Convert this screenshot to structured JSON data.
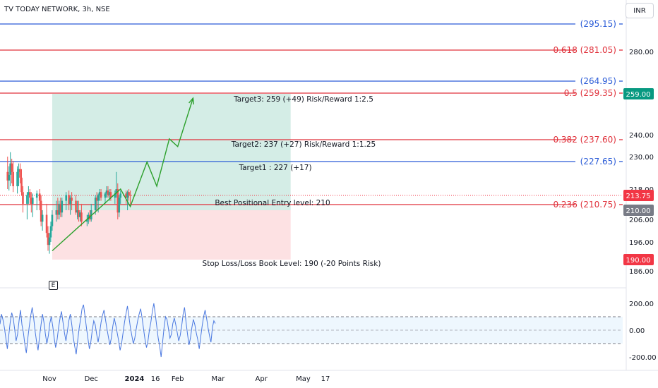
{
  "header": {
    "title": "TV TODAY NETWORK, 3h, NSE",
    "currency": "INR"
  },
  "event_marker": "E",
  "colors": {
    "blue_line": "#2a5bd7",
    "red_line": "#e0303a",
    "green_zone": "rgba(38,166,130,0.20)",
    "red_zone": "rgba(242,54,69,0.15)",
    "candle_up": "#26a69a",
    "candle_down": "#ef5350",
    "projection": "#2ca02c",
    "indicator": "#4a78e0",
    "tag_green": "#089981",
    "tag_red": "#f23645",
    "tag_gray": "#787b86"
  },
  "chart_data": {
    "type": "candlestick",
    "price_axis": {
      "ticks": [
        "280.00",
        "259.00",
        "240.00",
        "230.00",
        "218.00",
        "210.00",
        "206.00",
        "196.00",
        "190.00",
        "186.00"
      ]
    },
    "x_axis": {
      "ticks": [
        "Nov",
        "Dec",
        "2024",
        "16",
        "Feb",
        "Mar",
        "Apr",
        "May",
        "17"
      ]
    },
    "horizontal_levels": [
      {
        "label": "(295.15)",
        "value": 295.15,
        "color": "blue"
      },
      {
        "label": "0.618 (281.05)",
        "value": 281.05,
        "color": "red"
      },
      {
        "label": "(264.95)",
        "value": 264.95,
        "color": "blue"
      },
      {
        "label": "0.5 (259.35)",
        "value": 259.35,
        "color": "red"
      },
      {
        "label": "0.382 (237.60)",
        "value": 237.6,
        "color": "red"
      },
      {
        "label": "(227.65)",
        "value": 227.65,
        "color": "blue"
      },
      {
        "label": "0.236 (210.75)",
        "value": 210.75,
        "color": "red"
      }
    ],
    "price_tags": [
      {
        "label": "259.00",
        "value": 259.0,
        "color": "green"
      },
      {
        "label": "213.75",
        "value": 213.75,
        "color": "red"
      },
      {
        "label": "210.00",
        "value": 210.0,
        "color": "gray"
      },
      {
        "label": "190.00",
        "value": 190.0,
        "color": "red"
      }
    ],
    "position": {
      "entry": 210,
      "target": 259,
      "stop": 190,
      "start": "2023-11-03",
      "end": "2024-04-22"
    },
    "annotations": [
      "Target3: 259 (+49) Risk/Reward 1:2.5",
      "Target2: 237 (+27) Risk/Reward 1:1.25",
      "Target1 : 227 (+17)",
      "Best Positional Entry level: 210",
      "Stop Loss/Loss Book Level: 190 (-20 Points Risk)"
    ],
    "projection_path": [
      {
        "date": "2023-11-03",
        "price": 193
      },
      {
        "date": "2023-12-22",
        "price": 218
      },
      {
        "date": "2023-12-29",
        "price": 210.5
      },
      {
        "date": "2024-01-10",
        "price": 227.5
      },
      {
        "date": "2024-01-17",
        "price": 219
      },
      {
        "date": "2024-01-26",
        "price": 238
      },
      {
        "date": "2024-02-01",
        "price": 234.5
      },
      {
        "date": "2024-02-12",
        "price": 257
      }
    ],
    "candles": [
      {
        "d": "2023-10-02",
        "o": 224,
        "h": 230,
        "l": 218,
        "c": 221
      },
      {
        "d": "2023-10-03",
        "o": 221,
        "h": 226,
        "l": 217,
        "c": 223
      },
      {
        "d": "2023-10-04",
        "o": 223,
        "h": 232,
        "l": 219,
        "c": 227
      },
      {
        "d": "2023-10-05",
        "o": 227,
        "h": 229,
        "l": 220,
        "c": 224
      },
      {
        "d": "2023-10-06",
        "o": 224,
        "h": 228,
        "l": 216,
        "c": 219
      },
      {
        "d": "2023-10-09",
        "o": 219,
        "h": 226,
        "l": 215,
        "c": 224
      },
      {
        "d": "2023-10-10",
        "o": 224,
        "h": 227,
        "l": 219,
        "c": 225
      },
      {
        "d": "2023-10-11",
        "o": 225,
        "h": 227,
        "l": 220,
        "c": 222
      },
      {
        "d": "2023-10-12",
        "o": 222,
        "h": 225,
        "l": 214,
        "c": 216
      },
      {
        "d": "2023-10-13",
        "o": 216,
        "h": 219,
        "l": 209,
        "c": 211
      },
      {
        "d": "2023-10-16",
        "o": 211,
        "h": 216,
        "l": 206,
        "c": 214
      },
      {
        "d": "2023-10-17",
        "o": 214,
        "h": 219,
        "l": 211,
        "c": 216
      },
      {
        "d": "2023-10-18",
        "o": 216,
        "h": 218,
        "l": 211,
        "c": 213
      },
      {
        "d": "2023-10-19",
        "o": 213,
        "h": 216,
        "l": 209,
        "c": 211
      },
      {
        "d": "2023-10-20",
        "o": 211,
        "h": 215,
        "l": 207,
        "c": 213
      },
      {
        "d": "2023-10-23",
        "o": 213,
        "h": 217,
        "l": 210,
        "c": 215
      },
      {
        "d": "2023-10-25",
        "o": 215,
        "h": 218,
        "l": 210,
        "c": 212
      },
      {
        "d": "2023-10-26",
        "o": 212,
        "h": 214,
        "l": 203,
        "c": 205
      },
      {
        "d": "2023-10-27",
        "o": 205,
        "h": 210,
        "l": 201,
        "c": 208
      },
      {
        "d": "2023-10-30",
        "o": 208,
        "h": 211,
        "l": 198,
        "c": 200
      },
      {
        "d": "2023-10-31",
        "o": 200,
        "h": 203,
        "l": 193,
        "c": 195
      },
      {
        "d": "2023-11-01",
        "o": 195,
        "h": 200,
        "l": 192,
        "c": 198
      },
      {
        "d": "2023-11-02",
        "o": 198,
        "h": 205,
        "l": 196,
        "c": 203
      },
      {
        "d": "2023-11-03",
        "o": 203,
        "h": 210,
        "l": 201,
        "c": 208
      },
      {
        "d": "2023-11-06",
        "o": 208,
        "h": 212,
        "l": 205,
        "c": 210
      },
      {
        "d": "2023-11-07",
        "o": 210,
        "h": 213,
        "l": 206,
        "c": 208
      },
      {
        "d": "2023-11-08",
        "o": 208,
        "h": 212,
        "l": 206,
        "c": 211
      },
      {
        "d": "2023-11-09",
        "o": 211,
        "h": 213,
        "l": 207,
        "c": 209
      },
      {
        "d": "2023-11-10",
        "o": 209,
        "h": 213,
        "l": 207,
        "c": 212
      },
      {
        "d": "2023-11-13",
        "o": 212,
        "h": 216,
        "l": 210,
        "c": 214
      },
      {
        "d": "2023-11-15",
        "o": 214,
        "h": 217,
        "l": 210,
        "c": 211
      },
      {
        "d": "2023-11-16",
        "o": 211,
        "h": 214,
        "l": 208,
        "c": 213
      },
      {
        "d": "2023-11-17",
        "o": 213,
        "h": 216,
        "l": 210,
        "c": 212
      },
      {
        "d": "2023-11-20",
        "o": 212,
        "h": 214,
        "l": 208,
        "c": 209
      },
      {
        "d": "2023-11-21",
        "o": 209,
        "h": 212,
        "l": 206,
        "c": 210
      },
      {
        "d": "2023-11-22",
        "o": 210,
        "h": 212,
        "l": 205,
        "c": 207
      },
      {
        "d": "2023-11-23",
        "o": 207,
        "h": 210,
        "l": 205,
        "c": 209
      },
      {
        "d": "2023-11-24",
        "o": 209,
        "h": 211,
        "l": 203,
        "c": 205
      },
      {
        "d": "2023-11-28",
        "o": 205,
        "h": 208,
        "l": 203,
        "c": 206
      },
      {
        "d": "2023-11-29",
        "o": 206,
        "h": 209,
        "l": 204,
        "c": 208
      },
      {
        "d": "2023-11-30",
        "o": 208,
        "h": 210,
        "l": 205,
        "c": 206
      },
      {
        "d": "2023-12-01",
        "o": 206,
        "h": 211,
        "l": 205,
        "c": 210
      },
      {
        "d": "2023-12-04",
        "o": 210,
        "h": 214,
        "l": 208,
        "c": 213
      },
      {
        "d": "2023-12-05",
        "o": 213,
        "h": 216,
        "l": 210,
        "c": 212
      },
      {
        "d": "2023-12-06",
        "o": 212,
        "h": 215,
        "l": 209,
        "c": 214
      },
      {
        "d": "2023-12-07",
        "o": 214,
        "h": 218,
        "l": 212,
        "c": 216
      },
      {
        "d": "2023-12-08",
        "o": 216,
        "h": 218,
        "l": 212,
        "c": 213
      },
      {
        "d": "2023-12-11",
        "o": 213,
        "h": 216,
        "l": 211,
        "c": 215
      },
      {
        "d": "2023-12-12",
        "o": 215,
        "h": 219,
        "l": 213,
        "c": 217
      },
      {
        "d": "2023-12-13",
        "o": 217,
        "h": 219,
        "l": 213,
        "c": 214
      },
      {
        "d": "2023-12-14",
        "o": 214,
        "h": 218,
        "l": 212,
        "c": 216
      },
      {
        "d": "2023-12-15",
        "o": 216,
        "h": 218,
        "l": 212,
        "c": 213
      },
      {
        "d": "2023-12-18",
        "o": 213,
        "h": 217,
        "l": 211,
        "c": 215
      },
      {
        "d": "2023-12-19",
        "o": 215,
        "h": 224,
        "l": 213,
        "c": 218
      },
      {
        "d": "2023-12-20",
        "o": 218,
        "h": 220,
        "l": 206,
        "c": 209
      },
      {
        "d": "2023-12-21",
        "o": 209,
        "h": 214,
        "l": 207,
        "c": 213
      },
      {
        "d": "2023-12-22",
        "o": 213,
        "h": 217,
        "l": 211,
        "c": 215
      },
      {
        "d": "2023-12-26",
        "o": 215,
        "h": 217,
        "l": 211,
        "c": 213
      },
      {
        "d": "2023-12-27",
        "o": 213,
        "h": 217,
        "l": 210,
        "c": 216
      },
      {
        "d": "2023-12-28",
        "o": 216,
        "h": 218,
        "l": 212,
        "c": 214
      },
      {
        "d": "2023-12-29",
        "o": 214,
        "h": 217,
        "l": 211,
        "c": 213.75
      }
    ],
    "indicator": {
      "axis_ticks": [
        "200.00",
        "0.00",
        "-200.00"
      ],
      "upper_band": 100,
      "lower_band": -100,
      "values": [
        45,
        120,
        80,
        20,
        -60,
        -140,
        -40,
        60,
        130,
        90,
        10,
        -80,
        -30,
        70,
        150,
        40,
        -20,
        -110,
        -170,
        -60,
        30,
        110,
        170,
        90,
        -10,
        -90,
        -150,
        -50,
        40,
        120,
        60,
        -30,
        -100,
        -40,
        50,
        100,
        30,
        -60,
        -130,
        -70,
        20,
        90,
        140,
        60,
        -20,
        -80,
        -10,
        70,
        120,
        40,
        -50,
        -120,
        -180,
        -80,
        10,
        80,
        160,
        190,
        110,
        20,
        -60,
        -140,
        -90,
        0,
        70,
        40,
        -30,
        -90,
        -20,
        60,
        110,
        150,
        80,
        10,
        -50,
        -110,
        -60,
        30,
        90,
        40,
        -20,
        -80,
        -150,
        -100,
        -20,
        60,
        120,
        180,
        100,
        20,
        -40,
        -100,
        -60,
        10,
        70,
        120,
        160,
        90,
        10,
        -70,
        -130,
        -80,
        0,
        60,
        140,
        200,
        120,
        30,
        -60,
        -120,
        -200,
        -90,
        20,
        100,
        80,
        10,
        -60,
        -30,
        50,
        90,
        40,
        -20,
        -80,
        -40,
        30,
        120,
        170,
        60,
        -30,
        -110,
        -60,
        20,
        80,
        40,
        -20,
        -70,
        -140,
        -50,
        30,
        100,
        150,
        90,
        20,
        -40,
        -90,
        20,
        70,
        50
      ]
    }
  }
}
